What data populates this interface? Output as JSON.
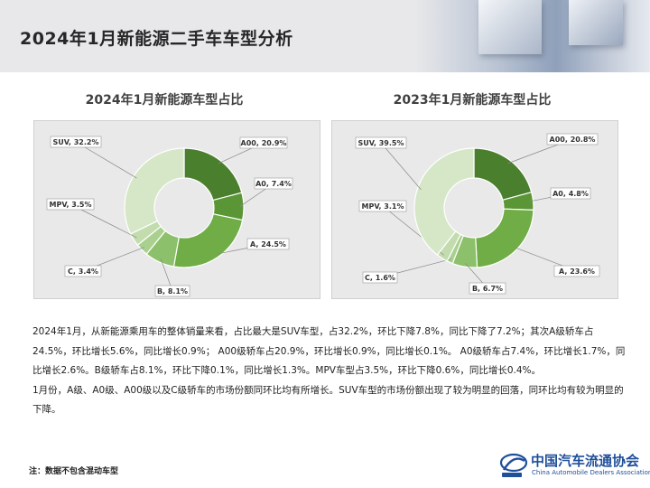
{
  "page": {
    "title": "2024年1月新能源二手车车型分析",
    "note": "注：数据不包含混动车型"
  },
  "logo": {
    "name": "中国汽车流通协会",
    "subtitle": "China Automobile Dealers Association"
  },
  "colors": {
    "A00": "#4a7f2e",
    "A0": "#5a9635",
    "A": "#70ad47",
    "B": "#8cc06a",
    "C": "#a9d08e",
    "MPV": "#c2dcae",
    "SUV": "#d5e7c7"
  },
  "analysis": {
    "p1": "2024年1月，从新能源乘用车的整体销量来看，占比最大是SUV车型，占32.2%，环比下降7.8%，同比下降了7.2%；其次A级轿车占24.5%，环比增长5.6%，同比增长0.9%；  A00级轿车占20.9%，环比增长0.9%，同比增长0.1%。 A0级轿车占7.4%，环比增长1.7%，同比增长2.6%。B级轿车占8.1%，环比下降0.1%，同比增长1.3%。MPV车型占3.5%，环比下降0.6%，同比增长0.4%。",
    "p2": "1月份，A级、A0级、A00级以及C级轿车的市场份额同环比均有所增长。SUV车型的市场份额出现了较为明显的回落，同环比均有较为明显的下降。"
  },
  "chart_data": [
    {
      "type": "pie",
      "title": "2024年1月新能源车型占比",
      "slices": [
        {
          "name": "A00",
          "value": 20.9,
          "label": "A00, 20.9%"
        },
        {
          "name": "A0",
          "value": 7.4,
          "label": "A0, 7.4%"
        },
        {
          "name": "A",
          "value": 24.5,
          "label": "A, 24.5%"
        },
        {
          "name": "B",
          "value": 8.1,
          "label": "B, 8.1%"
        },
        {
          "name": "C",
          "value": 3.4,
          "label": "C, 3.4%"
        },
        {
          "name": "MPV",
          "value": 3.5,
          "label": "MPV, 3.5%"
        },
        {
          "name": "SUV",
          "value": 32.2,
          "label": "SUV, 32.2%"
        }
      ]
    },
    {
      "type": "pie",
      "title": "2023年1月新能源车型占比",
      "slices": [
        {
          "name": "A00",
          "value": 20.8,
          "label": "A00, 20.8%"
        },
        {
          "name": "A0",
          "value": 4.8,
          "label": "A0, 4.8%"
        },
        {
          "name": "A",
          "value": 23.6,
          "label": "A, 23.6%"
        },
        {
          "name": "B",
          "value": 6.7,
          "label": "B, 6.7%"
        },
        {
          "name": "C",
          "value": 1.6,
          "label": "C, 1.6%"
        },
        {
          "name": "MPV",
          "value": 3.1,
          "label": "MPV, 3.1%"
        },
        {
          "name": "SUV",
          "value": 39.5,
          "label": "SUV, 39.5%"
        }
      ]
    }
  ]
}
